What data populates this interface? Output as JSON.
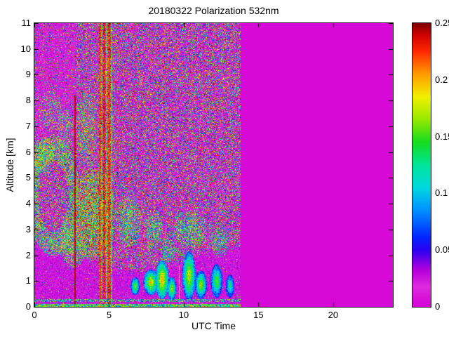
{
  "figure": {
    "title": "20180322 Polarization 532nm",
    "xlabel": "UTC Time",
    "ylabel": "Altitude [km]"
  },
  "chart_data": {
    "type": "heatmap",
    "title": "20180322 Polarization 532nm",
    "xlabel": "UTC Time",
    "ylabel": "Altitude [km]",
    "x_range": [
      0,
      24
    ],
    "y_range": [
      0,
      11
    ],
    "x_ticks": [
      0,
      5,
      10,
      15,
      20
    ],
    "x_tick_labels": [
      "0",
      "5",
      "10",
      "15",
      "20"
    ],
    "y_ticks": [
      0,
      1,
      2,
      3,
      4,
      5,
      6,
      7,
      8,
      9,
      10,
      11
    ],
    "y_tick_labels": [
      "0",
      "1",
      "2",
      "3",
      "4",
      "5",
      "6",
      "7",
      "8",
      "9",
      "10",
      "11"
    ],
    "colorbar": {
      "vmin": 0,
      "vmax": 0.25,
      "ticks": [
        {
          "v": 0,
          "label": "0"
        },
        {
          "v": 0.05,
          "label": "0.05"
        },
        {
          "v": 0.1,
          "label": "0.1"
        },
        {
          "v": 0.15,
          "label": "0.15"
        },
        {
          "v": 0.2,
          "label": "0.2"
        },
        {
          "v": 0.25,
          "label": "0.25"
        }
      ]
    },
    "colormap": [
      [
        0.0,
        "#d400d4"
      ],
      [
        0.018,
        "#de2ade"
      ],
      [
        0.032,
        "#b400dc"
      ],
      [
        0.05,
        "#2a00f0"
      ],
      [
        0.062,
        "#0028ff"
      ],
      [
        0.085,
        "#0090ff"
      ],
      [
        0.105,
        "#00d8e0"
      ],
      [
        0.125,
        "#00e49a"
      ],
      [
        0.145,
        "#14dc1e"
      ],
      [
        0.165,
        "#96e800"
      ],
      [
        0.185,
        "#f0f000"
      ],
      [
        0.205,
        "#ff9c00"
      ],
      [
        0.225,
        "#ff2800"
      ],
      [
        0.24,
        "#cc0000"
      ],
      [
        0.25,
        "#7a0000"
      ]
    ],
    "data_end_utc": 13.8,
    "background_value": 0.004,
    "seed": 20180322,
    "noise": {
      "bl_base": 1.9,
      "bl_amp": 0.45,
      "bl_period": 2.2,
      "bl_jitter": 0.35,
      "speckle_p": 0.5,
      "lower_speckle_p": 0.05,
      "sparse_p": 0.22,
      "haze_base": 0.006,
      "haze_range": 0.03
    },
    "features": {
      "plumes": [
        {
          "t": 1.25,
          "a": 4.3,
          "rt": 1.5,
          "ra": 2.1,
          "d": 0.5,
          "v0": 0.07,
          "v1": 0.21,
          "ring": true
        },
        {
          "t": 0.55,
          "a": 5.9,
          "rt": 0.8,
          "ra": 0.7,
          "d": 0.55,
          "v0": 0.09,
          "v1": 0.22
        },
        {
          "t": 1.1,
          "a": 7.6,
          "rt": 0.85,
          "ra": 0.8,
          "d": 0.3,
          "v0": 0.07,
          "v1": 0.2
        },
        {
          "t": 2.1,
          "a": 6.9,
          "rt": 0.6,
          "ra": 0.8,
          "d": 0.35,
          "v0": 0.07,
          "v1": 0.2
        },
        {
          "t": 3.9,
          "a": 3.6,
          "rt": 1.55,
          "ra": 1.8,
          "d": 0.7,
          "v0": 0.08,
          "v1": 0.25
        },
        {
          "t": 3.5,
          "a": 7.0,
          "rt": 0.7,
          "ra": 1.4,
          "d": 0.45,
          "v0": 0.08,
          "v1": 0.23
        },
        {
          "t": 2.6,
          "a": 2.3,
          "rt": 0.9,
          "ra": 0.8,
          "d": 0.55,
          "v0": 0.08,
          "v1": 0.22
        },
        {
          "t": 6.3,
          "a": 3.3,
          "rt": 0.85,
          "ra": 1.0,
          "d": 0.5,
          "v0": 0.07,
          "v1": 0.2
        },
        {
          "t": 8.0,
          "a": 3.0,
          "rt": 0.6,
          "ra": 0.7,
          "d": 0.5,
          "v0": 0.07,
          "v1": 0.2
        },
        {
          "t": 10.4,
          "a": 3.0,
          "rt": 1.1,
          "ra": 0.7,
          "d": 0.5,
          "v0": 0.07,
          "v1": 0.2
        },
        {
          "t": 9.0,
          "a": 2.2,
          "rt": 0.5,
          "ra": 0.5,
          "d": 0.45,
          "v0": 0.07,
          "v1": 0.18
        },
        {
          "t": 12.4,
          "a": 2.5,
          "rt": 0.6,
          "ra": 0.6,
          "d": 0.45,
          "v0": 0.07,
          "v1": 0.18
        }
      ],
      "clouds": [
        {
          "t": 6.75,
          "a": 0.8,
          "rt": 0.3,
          "ra": 0.35,
          "v1": 0.17,
          "v0": 0.06
        },
        {
          "t": 7.8,
          "a": 0.95,
          "rt": 0.5,
          "ra": 0.5,
          "v1": 0.2,
          "v0": 0.07
        },
        {
          "t": 8.55,
          "a": 1.05,
          "rt": 0.45,
          "ra": 0.75,
          "v1": 0.21,
          "v0": 0.08
        },
        {
          "t": 9.2,
          "a": 0.7,
          "rt": 0.3,
          "ra": 0.45,
          "v1": 0.18,
          "v0": 0.07
        },
        {
          "t": 10.35,
          "a": 1.2,
          "rt": 0.45,
          "ra": 0.95,
          "v1": 0.19,
          "v0": 0.07
        },
        {
          "t": 11.15,
          "a": 0.85,
          "rt": 0.4,
          "ra": 0.55,
          "v1": 0.18,
          "v0": 0.06
        },
        {
          "t": 12.2,
          "a": 1.0,
          "rt": 0.4,
          "ra": 0.65,
          "v1": 0.16,
          "v0": 0.06
        },
        {
          "t": 13.1,
          "a": 0.8,
          "rt": 0.3,
          "ra": 0.45,
          "v1": 0.14,
          "v0": 0.05
        }
      ],
      "stripes": [
        {
          "t": 2.72,
          "w": 0.05,
          "a0": 0,
          "a1": 8.2,
          "v0": 0.235,
          "v1": 0.25,
          "p": 0.95
        },
        {
          "t": 4.38,
          "w": 0.055,
          "a0": 0,
          "a1": 11,
          "v0": 0.2,
          "v1": 0.25,
          "p": 0.95
        },
        {
          "t": 4.52,
          "w": 0.045,
          "a0": 0,
          "a1": 11,
          "v0": 0.12,
          "v1": 0.25,
          "p": 0.85
        },
        {
          "t": 4.68,
          "w": 0.07,
          "a0": 0,
          "a1": 11,
          "v0": 0.21,
          "v1": 0.25,
          "p": 0.95
        },
        {
          "t": 4.84,
          "w": 0.05,
          "a0": 0,
          "a1": 11,
          "v0": 0.1,
          "v1": 0.24,
          "p": 0.8
        },
        {
          "t": 5.0,
          "w": 0.05,
          "a0": 0,
          "a1": 11,
          "v0": 0.2,
          "v1": 0.25,
          "p": 0.9
        },
        {
          "t": 5.15,
          "w": 0.04,
          "a0": 0,
          "a1": 11,
          "v0": 0.08,
          "v1": 0.22,
          "p": 0.75
        },
        {
          "t": 9.7,
          "w": 0.045,
          "a0": 0,
          "a1": 1.6,
          "v0": 0.16,
          "v1": 0.22,
          "p": 0.9
        }
      ],
      "surface": {
        "h1": 0.1,
        "v0": 0.06,
        "v1": 0.22,
        "h2a": 0.2,
        "h2b": 0.3,
        "p2": 0.6
      }
    }
  }
}
